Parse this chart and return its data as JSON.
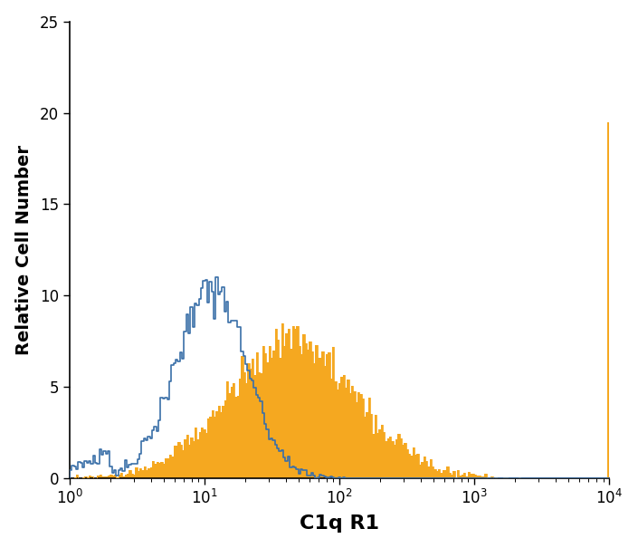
{
  "xlabel": "C1q R1",
  "ylabel": "Relative Cell Number",
  "xlim": [
    1,
    10000
  ],
  "ylim": [
    0,
    25
  ],
  "yticks": [
    0,
    5,
    10,
    15,
    20,
    25
  ],
  "blue_color": "#3a6fa8",
  "orange_color": "#f5a820",
  "background_color": "#ffffff",
  "xlabel_fontsize": 16,
  "ylabel_fontsize": 14,
  "n_bins": 256
}
